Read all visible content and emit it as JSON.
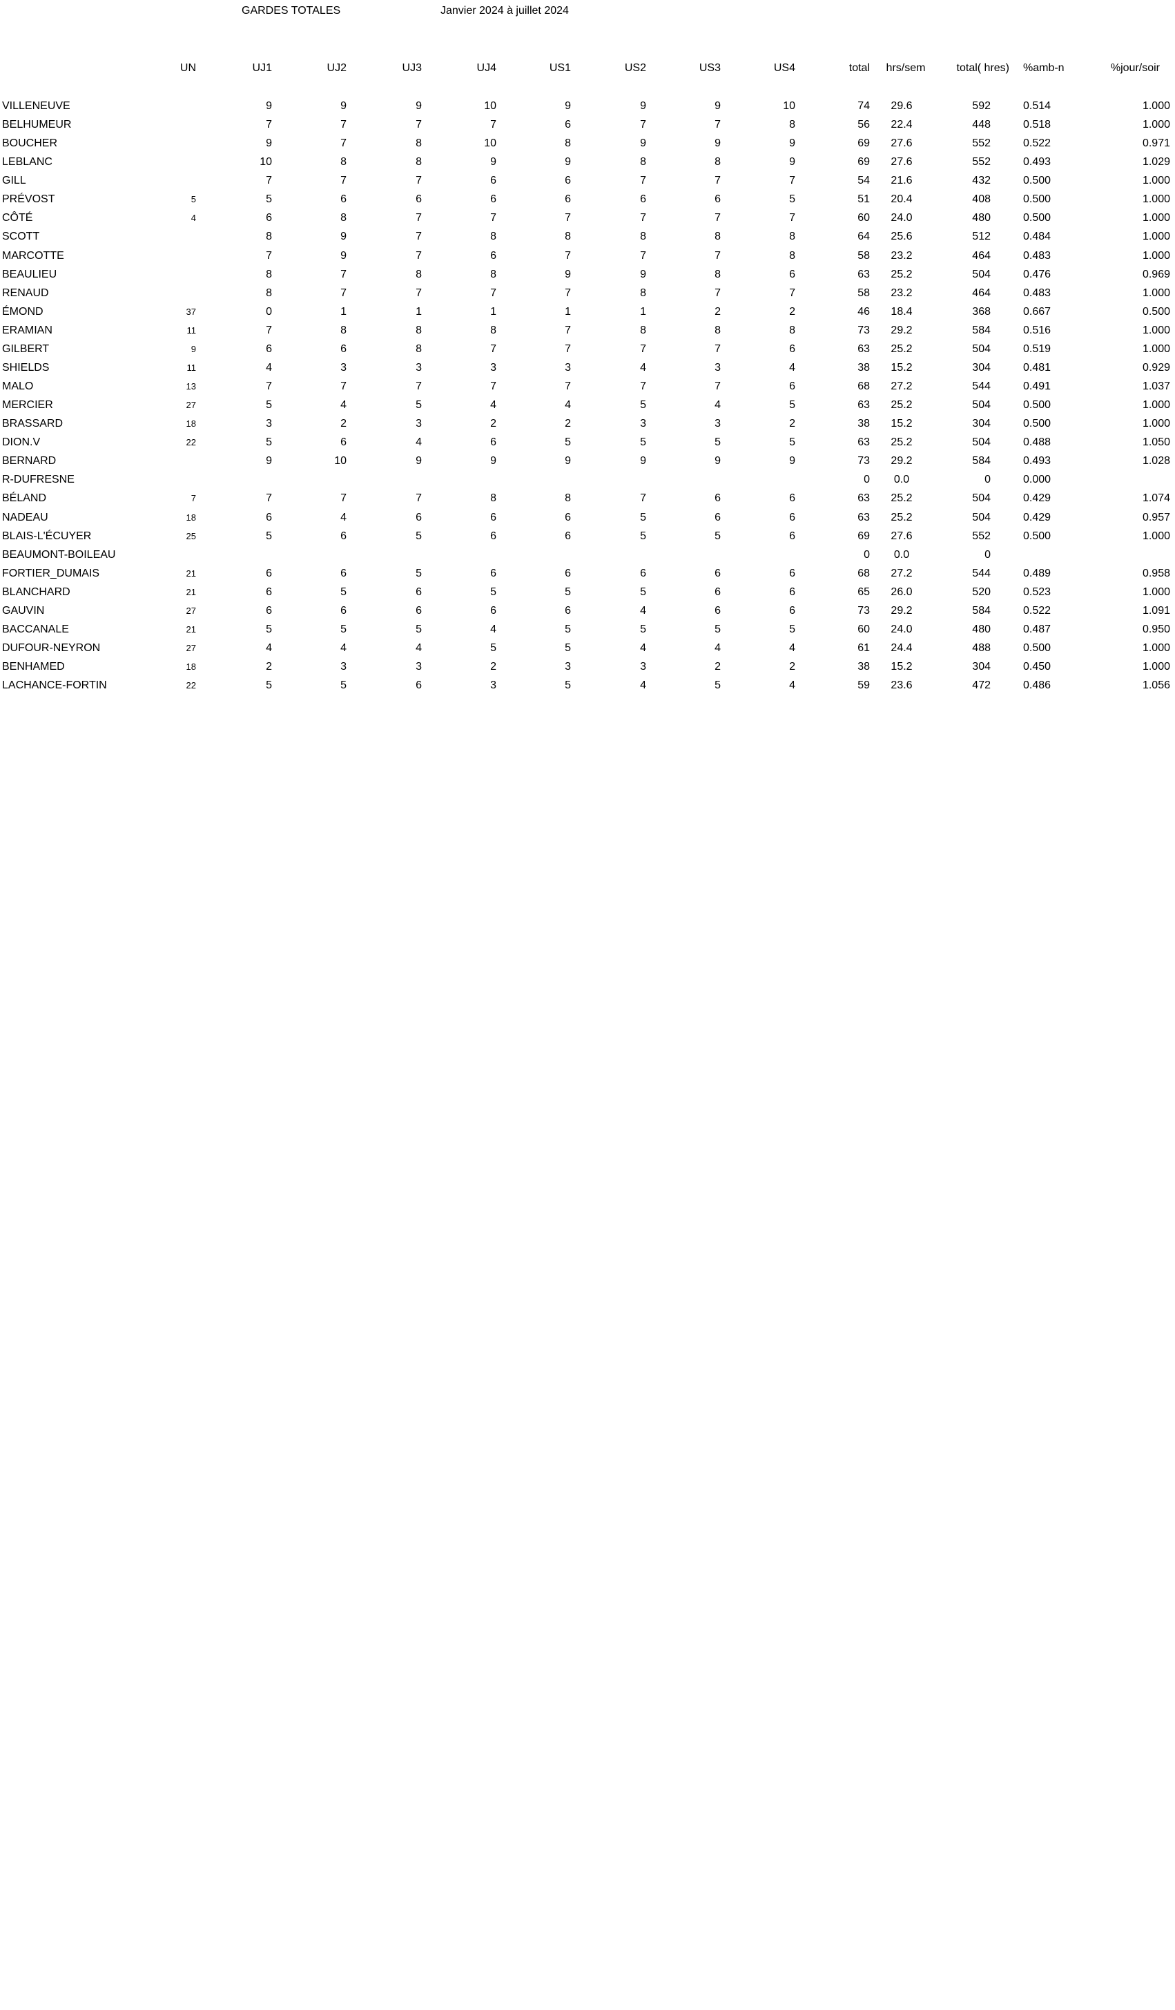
{
  "title": "GARDES  TOTALES",
  "period": "Janvier 2024 à juillet 2024",
  "columns": [
    "UN",
    "UJ1",
    "UJ2",
    "UJ3",
    "UJ4",
    "US1",
    "US2",
    "US3",
    "US4",
    "total",
    "hrs/sem",
    "total( hres)",
    "%amb-n",
    "%jour/soir"
  ],
  "rows": [
    {
      "name": "VILLENEUVE",
      "un": "",
      "uj1": "9",
      "uj2": "9",
      "uj3": "9",
      "uj4": "10",
      "us1": "9",
      "us2": "9",
      "us3": "9",
      "us4": "10",
      "total": "74",
      "hrs": "29.6",
      "th": "592",
      "amb": "0.514",
      "pj": "1.000"
    },
    {
      "name": "BELHUMEUR",
      "un": "",
      "uj1": "7",
      "uj2": "7",
      "uj3": "7",
      "uj4": "7",
      "us1": "6",
      "us2": "7",
      "us3": "7",
      "us4": "8",
      "total": "56",
      "hrs": "22.4",
      "th": "448",
      "amb": "0.518",
      "pj": "1.000"
    },
    {
      "name": "BOUCHER",
      "un": "",
      "uj1": "9",
      "uj2": "7",
      "uj3": "8",
      "uj4": "10",
      "us1": "8",
      "us2": "9",
      "us3": "9",
      "us4": "9",
      "total": "69",
      "hrs": "27.6",
      "th": "552",
      "amb": "0.522",
      "pj": "0.971"
    },
    {
      "name": "LEBLANC",
      "un": "",
      "uj1": "10",
      "uj2": "8",
      "uj3": "8",
      "uj4": "9",
      "us1": "9",
      "us2": "8",
      "us3": "8",
      "us4": "9",
      "total": "69",
      "hrs": "27.6",
      "th": "552",
      "amb": "0.493",
      "pj": "1.029"
    },
    {
      "name": "GILL",
      "un": "",
      "uj1": "7",
      "uj2": "7",
      "uj3": "7",
      "uj4": "6",
      "us1": "6",
      "us2": "7",
      "us3": "7",
      "us4": "7",
      "total": "54",
      "hrs": "21.6",
      "th": "432",
      "amb": "0.500",
      "pj": "1.000"
    },
    {
      "name": "PRÉVOST",
      "un": "5",
      "uj1": "5",
      "uj2": "6",
      "uj3": "6",
      "uj4": "6",
      "us1": "6",
      "us2": "6",
      "us3": "6",
      "us4": "5",
      "total": "51",
      "hrs": "20.4",
      "th": "408",
      "amb": "0.500",
      "pj": "1.000"
    },
    {
      "name": "CÔTÉ",
      "un": "4",
      "uj1": "6",
      "uj2": "8",
      "uj3": "7",
      "uj4": "7",
      "us1": "7",
      "us2": "7",
      "us3": "7",
      "us4": "7",
      "total": "60",
      "hrs": "24.0",
      "th": "480",
      "amb": "0.500",
      "pj": "1.000"
    },
    {
      "name": "SCOTT",
      "un": "",
      "uj1": "8",
      "uj2": "9",
      "uj3": "7",
      "uj4": "8",
      "us1": "8",
      "us2": "8",
      "us3": "8",
      "us4": "8",
      "total": "64",
      "hrs": "25.6",
      "th": "512",
      "amb": "0.484",
      "pj": "1.000"
    },
    {
      "name": "MARCOTTE",
      "un": "",
      "uj1": "7",
      "uj2": "9",
      "uj3": "7",
      "uj4": "6",
      "us1": "7",
      "us2": "7",
      "us3": "7",
      "us4": "8",
      "total": "58",
      "hrs": "23.2",
      "th": "464",
      "amb": "0.483",
      "pj": "1.000"
    },
    {
      "name": "BEAULIEU",
      "un": "",
      "uj1": "8",
      "uj2": "7",
      "uj3": "8",
      "uj4": "8",
      "us1": "9",
      "us2": "9",
      "us3": "8",
      "us4": "6",
      "total": "63",
      "hrs": "25.2",
      "th": "504",
      "amb": "0.476",
      "pj": "0.969"
    },
    {
      "name": "RENAUD",
      "un": "",
      "uj1": "8",
      "uj2": "7",
      "uj3": "7",
      "uj4": "7",
      "us1": "7",
      "us2": "8",
      "us3": "7",
      "us4": "7",
      "total": "58",
      "hrs": "23.2",
      "th": "464",
      "amb": "0.483",
      "pj": "1.000"
    },
    {
      "name": "ÉMOND",
      "un": "37",
      "uj1": "0",
      "uj2": "1",
      "uj3": "1",
      "uj4": "1",
      "us1": "1",
      "us2": "1",
      "us3": "2",
      "us4": "2",
      "total": "46",
      "hrs": "18.4",
      "th": "368",
      "amb": "0.667",
      "pj": "0.500"
    },
    {
      "name": "ERAMIAN",
      "un": "11",
      "uj1": "7",
      "uj2": "8",
      "uj3": "8",
      "uj4": "8",
      "us1": "7",
      "us2": "8",
      "us3": "8",
      "us4": "8",
      "total": "73",
      "hrs": "29.2",
      "th": "584",
      "amb": "0.516",
      "pj": "1.000"
    },
    {
      "name": "GILBERT",
      "un": "9",
      "uj1": "6",
      "uj2": "6",
      "uj3": "8",
      "uj4": "7",
      "us1": "7",
      "us2": "7",
      "us3": "7",
      "us4": "6",
      "total": "63",
      "hrs": "25.2",
      "th": "504",
      "amb": "0.519",
      "pj": "1.000"
    },
    {
      "name": "SHIELDS",
      "un": "11",
      "uj1": "4",
      "uj2": "3",
      "uj3": "3",
      "uj4": "3",
      "us1": "3",
      "us2": "4",
      "us3": "3",
      "us4": "4",
      "total": "38",
      "hrs": "15.2",
      "th": "304",
      "amb": "0.481",
      "pj": "0.929"
    },
    {
      "name": "MALO",
      "un": "13",
      "uj1": "7",
      "uj2": "7",
      "uj3": "7",
      "uj4": "7",
      "us1": "7",
      "us2": "7",
      "us3": "7",
      "us4": "6",
      "total": "68",
      "hrs": "27.2",
      "th": "544",
      "amb": "0.491",
      "pj": "1.037"
    },
    {
      "name": "MERCIER",
      "un": "27",
      "uj1": "5",
      "uj2": "4",
      "uj3": "5",
      "uj4": "4",
      "us1": "4",
      "us2": "5",
      "us3": "4",
      "us4": "5",
      "total": "63",
      "hrs": "25.2",
      "th": "504",
      "amb": "0.500",
      "pj": "1.000"
    },
    {
      "name": "BRASSARD",
      "un": "18",
      "uj1": "3",
      "uj2": "2",
      "uj3": "3",
      "uj4": "2",
      "us1": "2",
      "us2": "3",
      "us3": "3",
      "us4": "2",
      "total": "38",
      "hrs": "15.2",
      "th": "304",
      "amb": "0.500",
      "pj": "1.000"
    },
    {
      "name": "DION.V",
      "un": "22",
      "uj1": "5",
      "uj2": "6",
      "uj3": "4",
      "uj4": "6",
      "us1": "5",
      "us2": "5",
      "us3": "5",
      "us4": "5",
      "total": "63",
      "hrs": "25.2",
      "th": "504",
      "amb": "0.488",
      "pj": "1.050"
    },
    {
      "name": "BERNARD",
      "un": "",
      "uj1": "9",
      "uj2": "10",
      "uj3": "9",
      "uj4": "9",
      "us1": "9",
      "us2": "9",
      "us3": "9",
      "us4": "9",
      "total": "73",
      "hrs": "29.2",
      "th": "584",
      "amb": "0.493",
      "pj": "1.028"
    },
    {
      "name": "R-DUFRESNE",
      "un": "",
      "uj1": "",
      "uj2": "",
      "uj3": "",
      "uj4": "",
      "us1": "",
      "us2": "",
      "us3": "",
      "us4": "",
      "total": "0",
      "hrs": "0.0",
      "th": "0",
      "amb": "0.000",
      "pj": ""
    },
    {
      "name": "BÉLAND",
      "un": "7",
      "uj1": "7",
      "uj2": "7",
      "uj3": "7",
      "uj4": "8",
      "us1": "8",
      "us2": "7",
      "us3": "6",
      "us4": "6",
      "total": "63",
      "hrs": "25.2",
      "th": "504",
      "amb": "0.429",
      "pj": "1.074"
    },
    {
      "name": "NADEAU",
      "un": "18",
      "uj1": "6",
      "uj2": "4",
      "uj3": "6",
      "uj4": "6",
      "us1": "6",
      "us2": "5",
      "us3": "6",
      "us4": "6",
      "total": "63",
      "hrs": "25.2",
      "th": "504",
      "amb": "0.429",
      "pj": "0.957"
    },
    {
      "name": "BLAIS-L'ÉCUYER",
      "un": "25",
      "uj1": "5",
      "uj2": "6",
      "uj3": "5",
      "uj4": "6",
      "us1": "6",
      "us2": "5",
      "us3": "5",
      "us4": "6",
      "total": "69",
      "hrs": "27.6",
      "th": "552",
      "amb": "0.500",
      "pj": "1.000"
    },
    {
      "name": "BEAUMONT-BOILEAU",
      "un": "",
      "uj1": "",
      "uj2": "",
      "uj3": "",
      "uj4": "",
      "us1": "",
      "us2": "",
      "us3": "",
      "us4": "",
      "total": "0",
      "hrs": "0.0",
      "th": "0",
      "amb": "",
      "pj": ""
    },
    {
      "name": "FORTIER_DUMAIS",
      "un": "21",
      "uj1": "6",
      "uj2": "6",
      "uj3": "5",
      "uj4": "6",
      "us1": "6",
      "us2": "6",
      "us3": "6",
      "us4": "6",
      "total": "68",
      "hrs": "27.2",
      "th": "544",
      "amb": "0.489",
      "pj": "0.958"
    },
    {
      "name": "BLANCHARD",
      "un": "21",
      "uj1": "6",
      "uj2": "5",
      "uj3": "6",
      "uj4": "5",
      "us1": "5",
      "us2": "5",
      "us3": "6",
      "us4": "6",
      "total": "65",
      "hrs": "26.0",
      "th": "520",
      "amb": "0.523",
      "pj": "1.000"
    },
    {
      "name": "GAUVIN",
      "un": "27",
      "uj1": "6",
      "uj2": "6",
      "uj3": "6",
      "uj4": "6",
      "us1": "6",
      "us2": "4",
      "us3": "6",
      "us4": "6",
      "total": "73",
      "hrs": "29.2",
      "th": "584",
      "amb": "0.522",
      "pj": "1.091"
    },
    {
      "name": "BACCANALE",
      "un": "21",
      "uj1": "5",
      "uj2": "5",
      "uj3": "5",
      "uj4": "4",
      "us1": "5",
      "us2": "5",
      "us3": "5",
      "us4": "5",
      "total": "60",
      "hrs": "24.0",
      "th": "480",
      "amb": "0.487",
      "pj": "0.950"
    },
    {
      "name": "DUFOUR-NEYRON",
      "un": "27",
      "uj1": "4",
      "uj2": "4",
      "uj3": "4",
      "uj4": "5",
      "us1": "5",
      "us2": "4",
      "us3": "4",
      "us4": "4",
      "total": "61",
      "hrs": "24.4",
      "th": "488",
      "amb": "0.500",
      "pj": "1.000"
    },
    {
      "name": "BENHAMED",
      "un": "18",
      "uj1": "2",
      "uj2": "3",
      "uj3": "3",
      "uj4": "2",
      "us1": "3",
      "us2": "3",
      "us3": "2",
      "us4": "2",
      "total": "38",
      "hrs": "15.2",
      "th": "304",
      "amb": "0.450",
      "pj": "1.000"
    },
    {
      "name": "LACHANCE-FORTIN",
      "un": "22",
      "uj1": "5",
      "uj2": "5",
      "uj3": "6",
      "uj4": "3",
      "us1": "5",
      "us2": "4",
      "us3": "5",
      "us4": "4",
      "total": "59",
      "hrs": "23.6",
      "th": "472",
      "amb": "0.486",
      "pj": "1.056"
    }
  ]
}
